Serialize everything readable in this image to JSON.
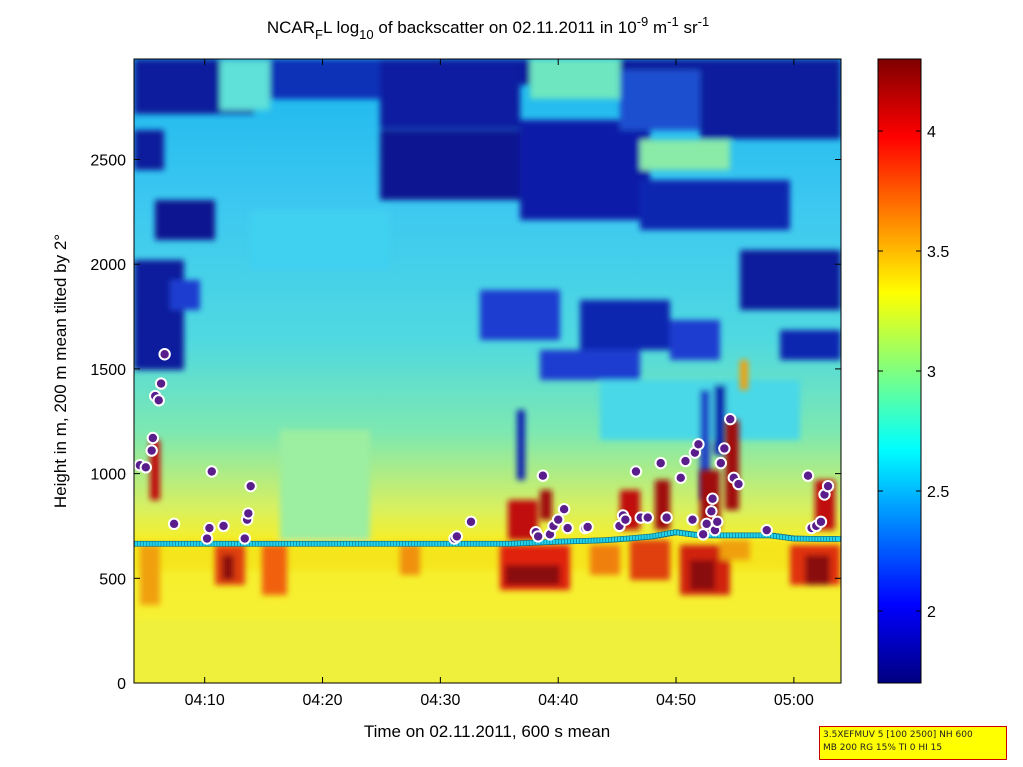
{
  "chart_data": {
    "type": "heatmap",
    "title": {
      "prefix": "NCAR",
      "sub1": "F",
      "mid1": "L log",
      "sub2": "10",
      "mid2": " of backscatter on 02.11.2011 in 10",
      "sup1": "-9",
      "mid3": " m",
      "sup2": "-1",
      "mid4": " sr",
      "sup3": "-1"
    },
    "xlabel": "Time on 02.11.2011, 600 s mean",
    "ylabel": "Height in m, 200 m mean tilted by 2°",
    "x_ticks": [
      "04:10",
      "04:20",
      "04:30",
      "04:40",
      "04:50",
      "05:00"
    ],
    "x_tick_minutes": [
      250,
      260,
      270,
      280,
      290,
      300
    ],
    "xlim_minutes": [
      244,
      304
    ],
    "y_ticks": [
      "0",
      "500",
      "1000",
      "1500",
      "2000",
      "2500"
    ],
    "y_tick_values": [
      0,
      500,
      1000,
      1500,
      2000,
      2500
    ],
    "ylim": [
      0,
      2980
    ],
    "colorbar": {
      "ticks": [
        "2",
        "2.5",
        "3",
        "3.5",
        "4"
      ],
      "tick_values": [
        2,
        2.5,
        3,
        3.5,
        4
      ],
      "range": [
        1.7,
        4.3
      ],
      "colormap": "jet"
    },
    "series": [
      {
        "marker": "cyan-square",
        "time_minutes": [
          244,
          246,
          248,
          250,
          252,
          254,
          256,
          258,
          260,
          262,
          264,
          266,
          268,
          270,
          272,
          274,
          276,
          278,
          280,
          282,
          284,
          286,
          288,
          290,
          292,
          294,
          296,
          298,
          300,
          302,
          304
        ],
        "height_m": [
          665,
          665,
          665,
          665,
          665,
          665,
          665,
          665,
          665,
          665,
          665,
          665,
          665,
          665,
          665,
          665,
          665,
          670,
          675,
          678,
          682,
          690,
          700,
          720,
          705,
          705,
          705,
          705,
          690,
          688,
          688
        ]
      },
      {
        "marker": "purple-circle",
        "time_minutes": [
          244.5,
          245,
          245.5,
          245.6,
          245.8,
          246.1,
          246.3,
          246.6,
          247.4,
          250.2,
          250.4,
          250.6,
          251.6,
          253.4,
          253.6,
          253.7,
          253.9,
          271.2,
          271.4,
          272.6,
          278.1,
          278.3,
          278.7,
          279.3,
          279.6,
          280.0,
          280.5,
          280.8,
          282.3,
          282.5,
          285.2,
          285.5,
          285.7,
          286.6,
          287.0,
          287.6,
          288.7,
          289.2,
          290.4,
          290.8,
          291.4,
          291.6,
          291.9,
          292.3,
          292.6,
          293.0,
          293.1,
          293.3,
          293.5,
          293.8,
          294.1,
          294.6,
          294.9,
          295.3,
          297.7,
          301.2,
          301.5,
          301.9,
          302.3,
          302.6,
          302.9
        ],
        "height_m": [
          1040,
          1030,
          1110,
          1170,
          1370,
          1350,
          1430,
          1570,
          760,
          690,
          740,
          1010,
          750,
          690,
          780,
          810,
          940,
          690,
          700,
          770,
          720,
          700,
          990,
          710,
          750,
          780,
          830,
          740,
          740,
          745,
          750,
          800,
          780,
          1010,
          790,
          790,
          1050,
          790,
          980,
          1060,
          780,
          1100,
          1140,
          710,
          760,
          820,
          880,
          730,
          770,
          1050,
          1120,
          1260,
          980,
          950,
          730,
          990,
          740,
          750,
          770,
          900,
          940
        ]
      }
    ]
  },
  "info_box": {
    "line1": "3.5XEFMUV 5 [100 2500] NH 600",
    "line2": "MB 200 RG 15% TI 0 HI 15"
  },
  "colors": {
    "jet_low": "#00007f",
    "jet_high": "#7f0000",
    "marker_square": "#22d3ee",
    "marker_circle_fill": "#5a1e8c",
    "marker_circle_edge": "#ffffff",
    "info_box_bg": "#ffff00",
    "info_box_border": "#cc0000"
  }
}
